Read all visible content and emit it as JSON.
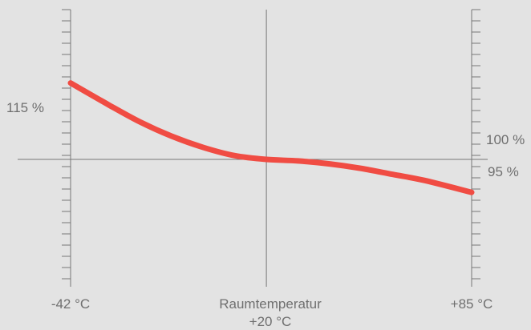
{
  "chart_data": {
    "type": "line",
    "title": "",
    "xlabel": "",
    "ylabel": "",
    "x_labels": {
      "left": "-42 °C",
      "center_line1": "Raumtemperatur",
      "center_line2": "+20 °C",
      "right": "+85 °C"
    },
    "y_labels": {
      "left": "115 %",
      "right_top": "100 %",
      "right_bottom": "95 %"
    },
    "xlim": [
      -42,
      85
    ],
    "ylim": [
      83,
      120
    ],
    "reference_y": 100,
    "series": [
      {
        "x": [
          -42,
          -30,
          -20,
          -10,
          0,
          10,
          20,
          30,
          40,
          50,
          60,
          70,
          85
        ],
        "y": [
          110.2,
          107.3,
          105.0,
          103.1,
          101.6,
          100.5,
          100.0,
          99.8,
          99.4,
          98.8,
          98.0,
          97.2,
          95.6
        ]
      }
    ],
    "colors": {
      "line": "#f04c43",
      "axis": "#777777",
      "text": "#6f6f6f",
      "highlight_text": "#ea4c44",
      "background": "#e3e3e3"
    }
  }
}
